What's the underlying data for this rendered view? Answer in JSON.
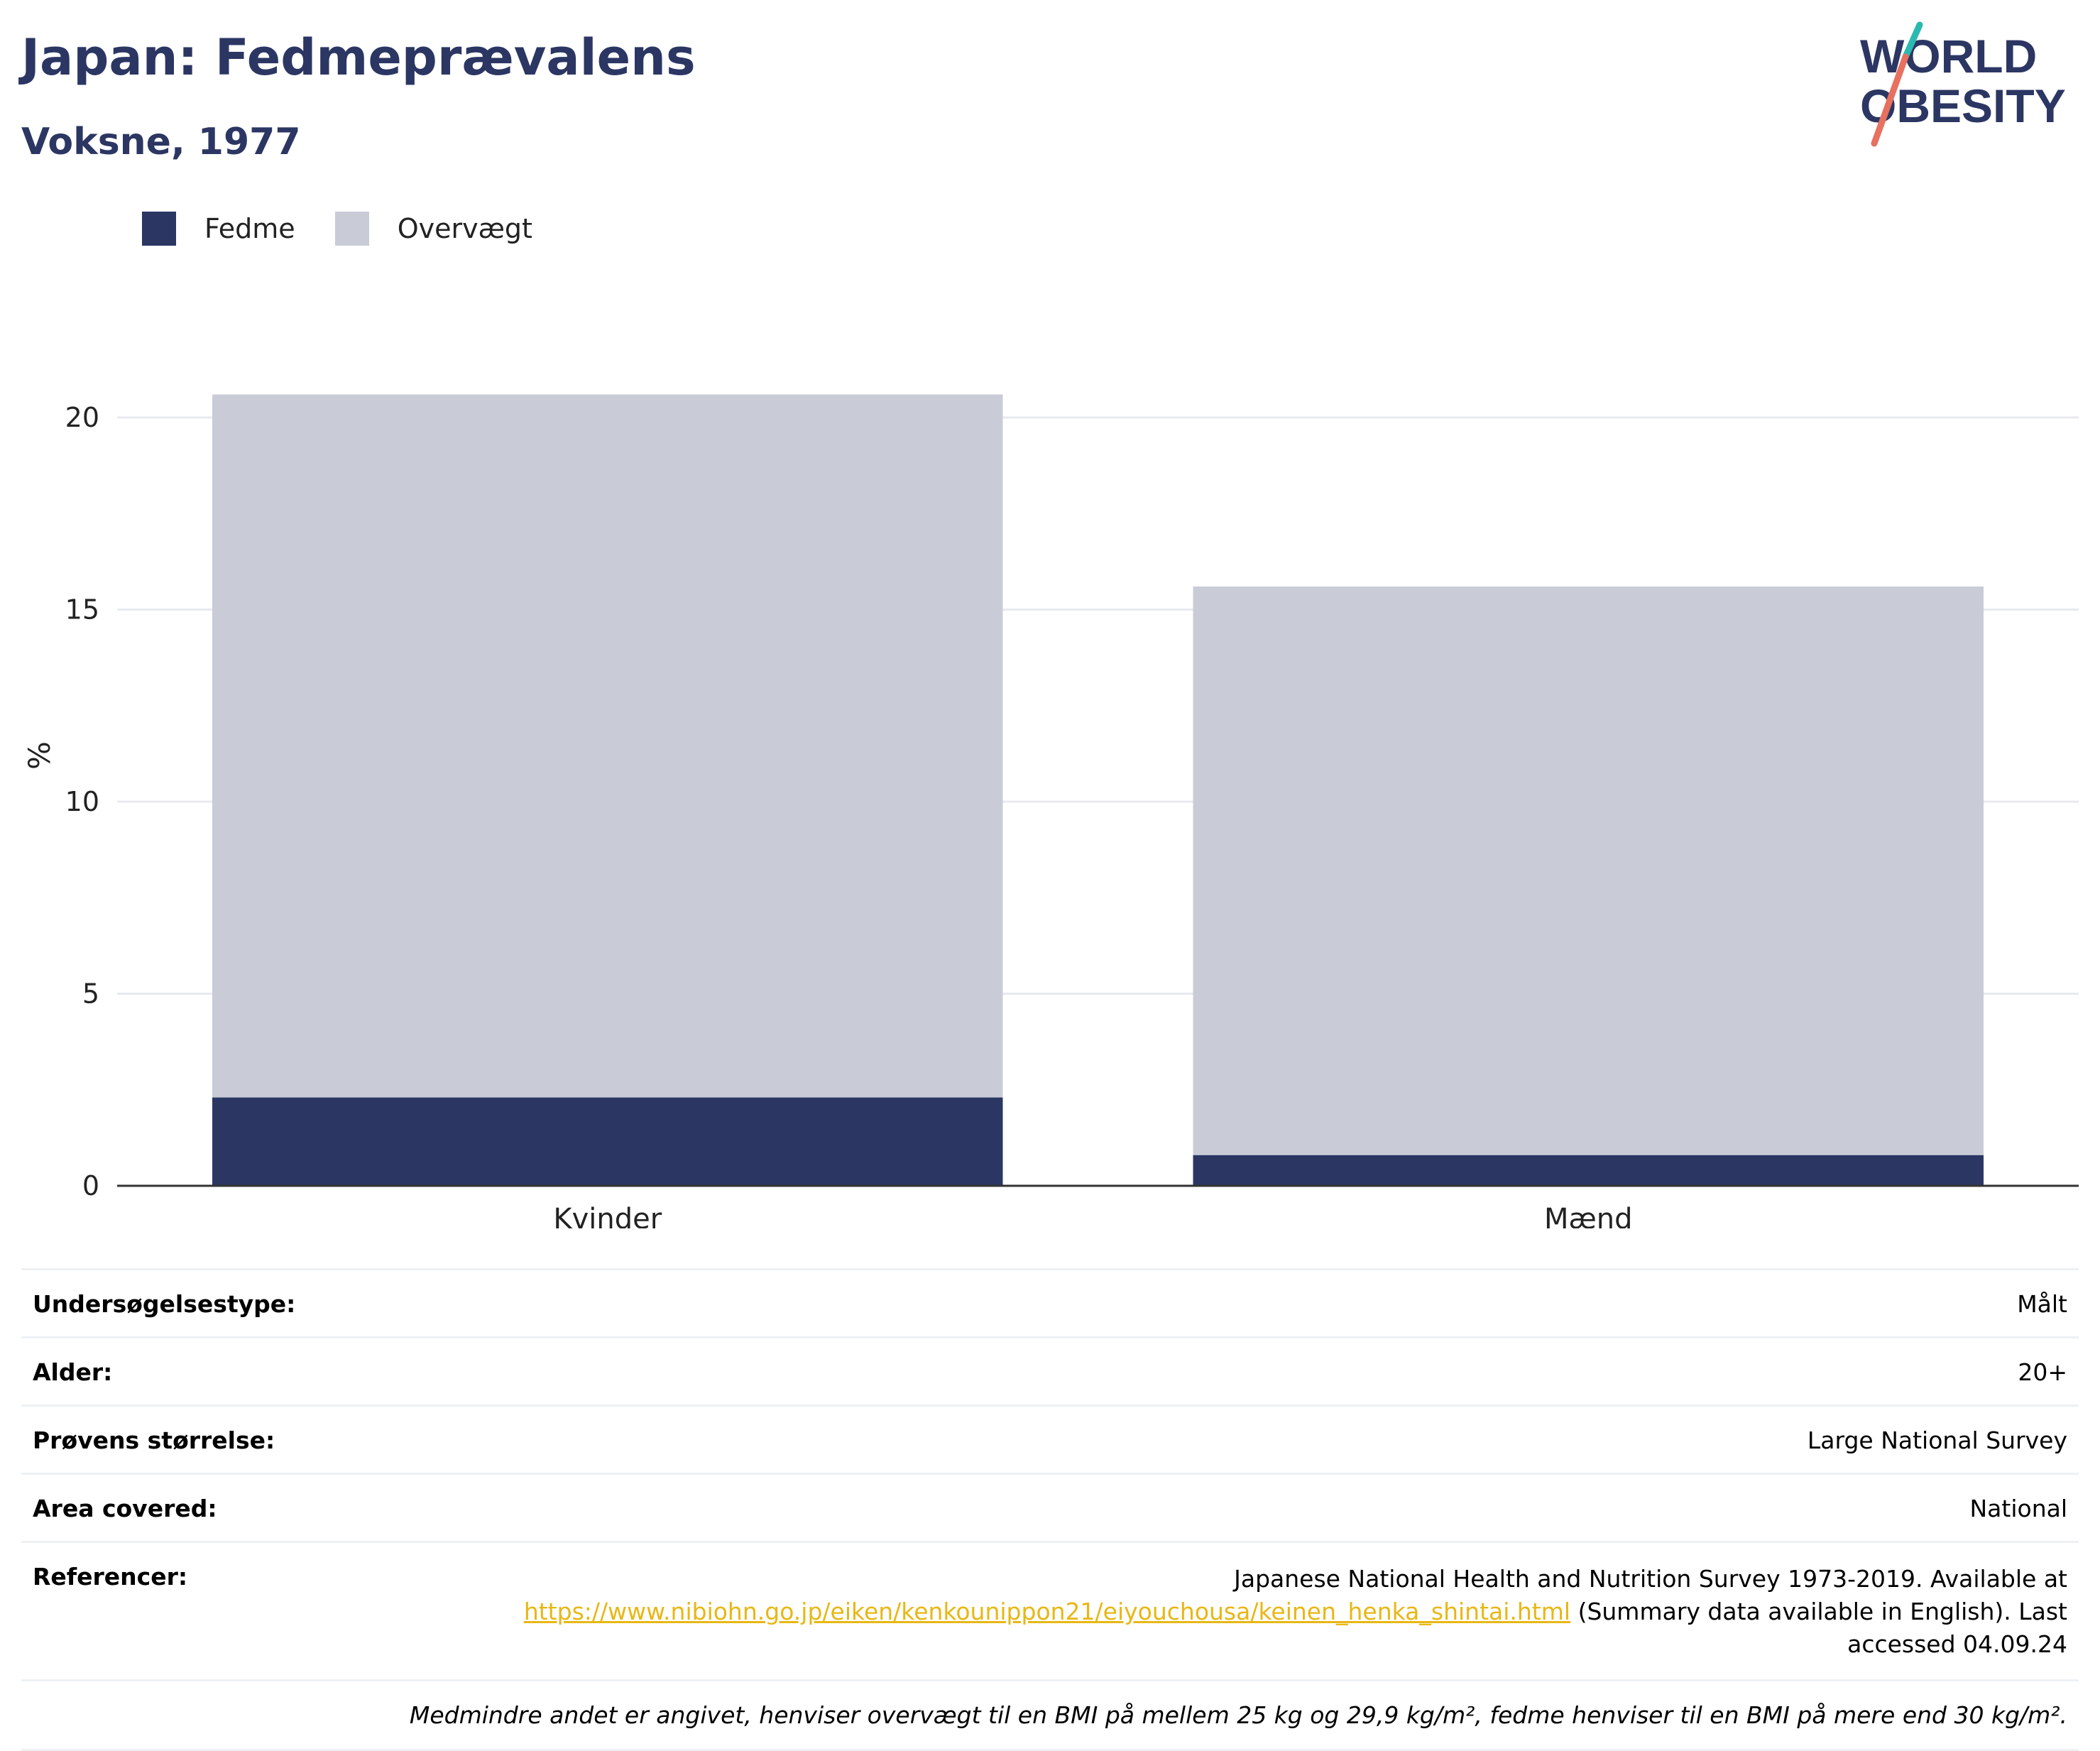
{
  "header": {
    "title": "Japan: Fedmeprævalens",
    "subtitle": "Voksne, 1977"
  },
  "logo": {
    "line1": "WORLD",
    "line2": "OBESITY",
    "colors": {
      "text": "#2b3663",
      "slash_teal": "#2bb9b0",
      "slash_coral": "#e8705f"
    }
  },
  "legend": [
    {
      "label": "Fedme",
      "color": "#2b3663"
    },
    {
      "label": "Overvægt",
      "color": "#c9ccd7"
    }
  ],
  "chart_data": {
    "type": "bar",
    "stacked": true,
    "categories": [
      "Kvinder",
      "Mænd"
    ],
    "series": [
      {
        "name": "Fedme",
        "color": "#2b3663",
        "values": [
          2.3,
          0.8
        ]
      },
      {
        "name": "Overvægt",
        "color": "#c9ccd7",
        "values": [
          18.3,
          14.8
        ]
      }
    ],
    "ylabel": "%",
    "ylim": [
      0,
      22
    ],
    "yticks": [
      0,
      5,
      10,
      15,
      20
    ],
    "grid": true
  },
  "info": {
    "rows": [
      {
        "label": "Undersøgelsestype:",
        "value": "Målt"
      },
      {
        "label": "Alder:",
        "value": "20+"
      },
      {
        "label": "Prøvens størrelse:",
        "value": "Large National Survey"
      },
      {
        "label": "Area covered:",
        "value": "National"
      }
    ],
    "references": {
      "label": "Referencer:",
      "line1": "Japanese National Health and Nutrition Survey 1973-2019. Available at",
      "link": "https://www.nibiohn.go.jp/eiken/kenkounippon21/eiyouchousa/keinen_henka_shintai.html",
      "line2_after": " (Summary data available in English). Last",
      "line3": "accessed 04.09.24"
    },
    "note": "Medmindre andet er angivet, henviser overvægt til en BMI på mellem 25 kg og 29,9 kg/m², fedme henviser til en BMI på mere end 30 kg/m²."
  }
}
